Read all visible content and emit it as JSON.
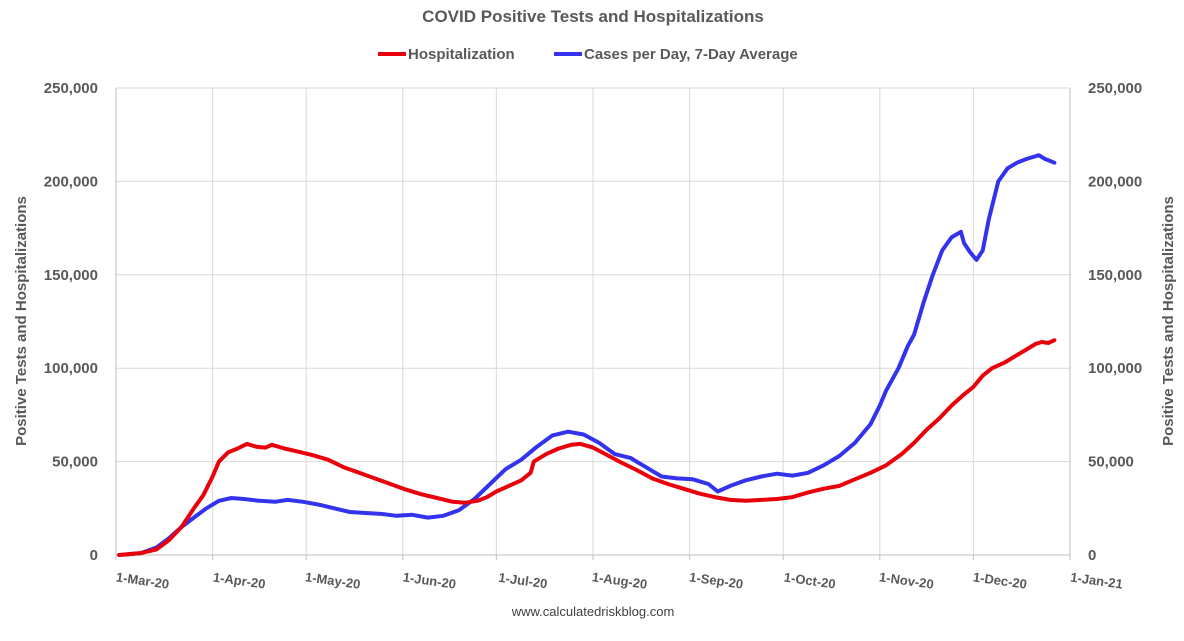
{
  "chart_data": {
    "type": "line",
    "title": "COVID Positive Tests and Hospitalizations",
    "ylabel": "Positive Tests and Hospitalizations",
    "y2label": "Positive Tests and Hospitalizations",
    "ylim": [
      0,
      250000
    ],
    "yticks": [
      "0",
      "50,000",
      "100,000",
      "150,000",
      "200,000",
      "250,000"
    ],
    "ytick_values": [
      0,
      50000,
      100000,
      150000,
      200000,
      250000
    ],
    "xlim": [
      "2020-03-01",
      "2021-01-01"
    ],
    "xticks": [
      "1-Mar-20",
      "1-Apr-20",
      "1-May-20",
      "1-Jun-20",
      "1-Jul-20",
      "1-Aug-20",
      "1-Sep-20",
      "1-Oct-20",
      "1-Nov-20",
      "1-Dec-20",
      "1-Jan-21"
    ],
    "xtick_dates": [
      "2020-03-01",
      "2020-04-01",
      "2020-05-01",
      "2020-06-01",
      "2020-07-01",
      "2020-08-01",
      "2020-09-01",
      "2020-10-01",
      "2020-11-01",
      "2020-12-01",
      "2021-01-01"
    ],
    "grid": true,
    "legend_position": "top-center",
    "source": "www.calculatedriskblog.com",
    "series": [
      {
        "name": "Hospitalization",
        "color": "#e8000b",
        "points": [
          [
            "2020-03-02",
            0
          ],
          [
            "2020-03-09",
            1000
          ],
          [
            "2020-03-14",
            3000
          ],
          [
            "2020-03-18",
            8000
          ],
          [
            "2020-03-22",
            15000
          ],
          [
            "2020-03-26",
            25000
          ],
          [
            "2020-03-29",
            32000
          ],
          [
            "2020-04-01",
            42000
          ],
          [
            "2020-04-03",
            50000
          ],
          [
            "2020-04-06",
            55000
          ],
          [
            "2020-04-09",
            57000
          ],
          [
            "2020-04-12",
            59500
          ],
          [
            "2020-04-15",
            58000
          ],
          [
            "2020-04-18",
            57500
          ],
          [
            "2020-04-20",
            59000
          ],
          [
            "2020-04-24",
            57000
          ],
          [
            "2020-04-28",
            55500
          ],
          [
            "2020-05-03",
            53500
          ],
          [
            "2020-05-08",
            51000
          ],
          [
            "2020-05-13",
            47000
          ],
          [
            "2020-05-18",
            44000
          ],
          [
            "2020-05-23",
            41000
          ],
          [
            "2020-05-28",
            38000
          ],
          [
            "2020-06-02",
            35000
          ],
          [
            "2020-06-07",
            32500
          ],
          [
            "2020-06-12",
            30500
          ],
          [
            "2020-06-17",
            28500
          ],
          [
            "2020-06-21",
            28000
          ],
          [
            "2020-06-25",
            29000
          ],
          [
            "2020-06-28",
            31000
          ],
          [
            "2020-07-01",
            34000
          ],
          [
            "2020-07-05",
            37000
          ],
          [
            "2020-07-09",
            40000
          ],
          [
            "2020-07-12",
            44000
          ],
          [
            "2020-07-13",
            50000
          ],
          [
            "2020-07-17",
            54000
          ],
          [
            "2020-07-21",
            57000
          ],
          [
            "2020-07-25",
            59000
          ],
          [
            "2020-07-28",
            59500
          ],
          [
            "2020-08-01",
            57500
          ],
          [
            "2020-08-05",
            54000
          ],
          [
            "2020-08-10",
            49500
          ],
          [
            "2020-08-15",
            45500
          ],
          [
            "2020-08-20",
            41000
          ],
          [
            "2020-08-25",
            38000
          ],
          [
            "2020-08-30",
            35500
          ],
          [
            "2020-09-04",
            33000
          ],
          [
            "2020-09-09",
            31000
          ],
          [
            "2020-09-14",
            29500
          ],
          [
            "2020-09-19",
            29000
          ],
          [
            "2020-09-24",
            29500
          ],
          [
            "2020-09-29",
            30000
          ],
          [
            "2020-10-04",
            31000
          ],
          [
            "2020-10-09",
            33500
          ],
          [
            "2020-10-14",
            35500
          ],
          [
            "2020-10-19",
            37000
          ],
          [
            "2020-10-24",
            40500
          ],
          [
            "2020-10-29",
            44000
          ],
          [
            "2020-11-03",
            48000
          ],
          [
            "2020-11-08",
            54000
          ],
          [
            "2020-11-12",
            60000
          ],
          [
            "2020-11-16",
            67000
          ],
          [
            "2020-11-20",
            73000
          ],
          [
            "2020-11-24",
            80000
          ],
          [
            "2020-11-28",
            86000
          ],
          [
            "2020-12-01",
            90000
          ],
          [
            "2020-12-04",
            96000
          ],
          [
            "2020-12-07",
            100000
          ],
          [
            "2020-12-11",
            103000
          ],
          [
            "2020-12-15",
            107000
          ],
          [
            "2020-12-18",
            110000
          ],
          [
            "2020-12-21",
            113000
          ],
          [
            "2020-12-23",
            114000
          ],
          [
            "2020-12-25",
            113500
          ],
          [
            "2020-12-27",
            115000
          ]
        ]
      },
      {
        "name": "Cases per Day, 7-Day Average",
        "color": "#3333ee",
        "points": [
          [
            "2020-03-02",
            0
          ],
          [
            "2020-03-09",
            1000
          ],
          [
            "2020-03-14",
            4000
          ],
          [
            "2020-03-18",
            9000
          ],
          [
            "2020-03-22",
            15000
          ],
          [
            "2020-03-26",
            20000
          ],
          [
            "2020-03-30",
            25000
          ],
          [
            "2020-04-03",
            29000
          ],
          [
            "2020-04-07",
            30500
          ],
          [
            "2020-04-11",
            30000
          ],
          [
            "2020-04-16",
            29000
          ],
          [
            "2020-04-21",
            28500
          ],
          [
            "2020-04-25",
            29500
          ],
          [
            "2020-04-30",
            28500
          ],
          [
            "2020-05-05",
            27000
          ],
          [
            "2020-05-10",
            25000
          ],
          [
            "2020-05-15",
            23000
          ],
          [
            "2020-05-20",
            22500
          ],
          [
            "2020-05-25",
            22000
          ],
          [
            "2020-05-30",
            21000
          ],
          [
            "2020-06-04",
            21500
          ],
          [
            "2020-06-09",
            20000
          ],
          [
            "2020-06-14",
            21000
          ],
          [
            "2020-06-19",
            24000
          ],
          [
            "2020-06-24",
            30000
          ],
          [
            "2020-06-29",
            38000
          ],
          [
            "2020-07-04",
            46000
          ],
          [
            "2020-07-09",
            51000
          ],
          [
            "2020-07-14",
            58000
          ],
          [
            "2020-07-19",
            64000
          ],
          [
            "2020-07-24",
            66000
          ],
          [
            "2020-07-29",
            64500
          ],
          [
            "2020-08-03",
            60000
          ],
          [
            "2020-08-08",
            54000
          ],
          [
            "2020-08-13",
            52000
          ],
          [
            "2020-08-18",
            47000
          ],
          [
            "2020-08-23",
            42000
          ],
          [
            "2020-08-28",
            41000
          ],
          [
            "2020-09-02",
            40500
          ],
          [
            "2020-09-07",
            38000
          ],
          [
            "2020-09-10",
            34000
          ],
          [
            "2020-09-14",
            37000
          ],
          [
            "2020-09-19",
            40000
          ],
          [
            "2020-09-24",
            42000
          ],
          [
            "2020-09-29",
            43500
          ],
          [
            "2020-10-04",
            42500
          ],
          [
            "2020-10-09",
            44000
          ],
          [
            "2020-10-14",
            48000
          ],
          [
            "2020-10-19",
            53000
          ],
          [
            "2020-10-24",
            60000
          ],
          [
            "2020-10-29",
            70000
          ],
          [
            "2020-11-01",
            80000
          ],
          [
            "2020-11-03",
            88000
          ],
          [
            "2020-11-07",
            100000
          ],
          [
            "2020-11-10",
            112000
          ],
          [
            "2020-11-12",
            118000
          ],
          [
            "2020-11-15",
            135000
          ],
          [
            "2020-11-18",
            150000
          ],
          [
            "2020-11-21",
            163000
          ],
          [
            "2020-11-24",
            170000
          ],
          [
            "2020-11-27",
            173000
          ],
          [
            "2020-11-28",
            167000
          ],
          [
            "2020-11-30",
            162000
          ],
          [
            "2020-12-02",
            158000
          ],
          [
            "2020-12-04",
            163000
          ],
          [
            "2020-12-06",
            180000
          ],
          [
            "2020-12-09",
            200000
          ],
          [
            "2020-12-12",
            207000
          ],
          [
            "2020-12-15",
            210000
          ],
          [
            "2020-12-18",
            212000
          ],
          [
            "2020-12-20",
            213000
          ],
          [
            "2020-12-22",
            214000
          ],
          [
            "2020-12-24",
            212000
          ],
          [
            "2020-12-27",
            210000
          ]
        ]
      }
    ]
  }
}
